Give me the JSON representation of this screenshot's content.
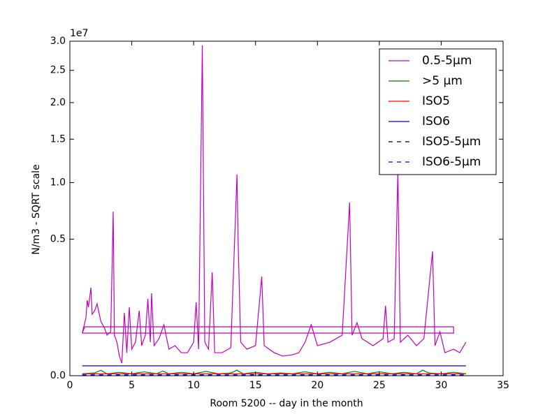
{
  "chart_data": {
    "type": "line",
    "xlabel": "Room 5200 -- day in the month",
    "ylabel": "N/m3 - SQRT scale",
    "y_offset_label": "1e7",
    "yscale": "sqrt",
    "xlim": [
      0,
      35
    ],
    "xticks": [
      0,
      5,
      10,
      15,
      20,
      25,
      30,
      35
    ],
    "ylim": [
      0,
      3
    ],
    "yticks": [
      {
        "value": 0,
        "label": "0.0"
      },
      0.5,
      {
        "value": 1,
        "label": "1.0"
      },
      1.5,
      {
        "value": 2,
        "label": "2.0"
      },
      2.5,
      {
        "value": 3,
        "label": "3.0"
      }
    ],
    "legend": "upper right",
    "series": [
      {
        "name": "0.5-5µm",
        "color": "#bf00bf",
        "linestyle": "solid",
        "x": [
          1.0,
          31.0,
          31.0,
          1.2,
          1.0,
          1.3,
          1.4,
          1.5,
          1.7,
          1.8,
          2.0,
          2.2,
          2.5,
          2.8,
          3.0,
          3.3,
          3.5,
          3.6,
          3.8,
          4.0,
          4.2,
          4.4,
          4.6,
          4.8,
          5.0,
          5.3,
          5.6,
          5.8,
          6.1,
          6.3,
          6.5,
          6.6,
          6.8,
          7.2,
          7.6,
          8.0,
          8.5,
          9.0,
          9.5,
          10.0,
          10.2,
          10.4,
          10.7,
          10.9,
          11.2,
          11.5,
          11.7,
          12.3,
          13.0,
          13.4,
          13.5,
          13.6,
          13.8,
          14.3,
          15.0,
          15.5,
          15.7,
          16.5,
          17.2,
          18.0,
          18.5,
          19.0,
          19.5,
          20.0,
          21.0,
          22.0,
          22.6,
          22.8,
          23.2,
          23.6,
          24.5,
          25.3,
          25.5,
          25.7,
          26.2,
          26.5,
          26.7,
          27.3,
          28.0,
          28.6,
          29.3,
          29.5,
          29.9,
          30.3,
          31.0,
          31.5,
          32.0
        ],
        "values": [
          0.0487,
          0.0487,
          0.0641,
          0.0641,
          0.0487,
          0.0901,
          0.1525,
          0.1256,
          0.2076,
          0.1013,
          0.1131,
          0.1387,
          0.0795,
          0.0605,
          0.044,
          0.0519,
          0.7221,
          0.044,
          0.0301,
          0.0103,
          0.0042,
          0.1059,
          0.0142,
          0.1256,
          0.0189,
          0.0301,
          0.1131,
          0.0242,
          0.044,
          0.1582,
          0.0301,
          0.1821,
          0.0242,
          0.0367,
          0.0697,
          0.0189,
          0.0242,
          0.0142,
          0.0142,
          0.0301,
          0.1442,
          0.0189,
          2.9253,
          0.0301,
          0.0189,
          0.2864,
          0.0142,
          0.0142,
          0.0209,
          0.7406,
          1.0845,
          0.4621,
          0.0301,
          0.0189,
          0.0242,
          0.2636,
          0.0242,
          0.0142,
          0.0103,
          0.0118,
          0.0142,
          0.0301,
          0.0697,
          0.0242,
          0.0301,
          0.044,
          0.8042,
          0.044,
          0.0755,
          0.0367,
          0.0242,
          0.0367,
          0.1308,
          0.0301,
          0.0367,
          1.1225,
          0.0301,
          0.044,
          0.0242,
          0.0367,
          0.4143,
          0.0242,
          0.0519,
          0.0142,
          0.0189,
          0.0142,
          0.0301
        ]
      },
      {
        "name": ">5 µm",
        "color": "#008000",
        "linestyle": "solid",
        "x": [
          1,
          2,
          2.5,
          3,
          4,
          5,
          6,
          7,
          7.5,
          8,
          9,
          10,
          11,
          12,
          13,
          13.5,
          14,
          15,
          16,
          17,
          18,
          19,
          20,
          21,
          22,
          23,
          24,
          25,
          26,
          27,
          28,
          28.5,
          29,
          30,
          31,
          32
        ],
        "values": [
          0.0001,
          0.0002,
          0.0008,
          0.0001,
          0.0003,
          0.0001,
          0.0004,
          0.0001,
          0.0006,
          0.0001,
          0.0003,
          0.0001,
          0.0005,
          0.0001,
          0.0002,
          0.0008,
          0.0001,
          0.0003,
          0.0001,
          0.0002,
          0.0001,
          0.0004,
          0.0001,
          0.0003,
          0.0001,
          0.0005,
          0.0001,
          0.0004,
          0.0001,
          0.0003,
          0.0001,
          0.0008,
          0.0002,
          0.0001,
          0.0003,
          0.0001
        ]
      },
      {
        "name": "ISO5",
        "color": "#ff0000",
        "linestyle": "solid",
        "x": [
          1,
          32
        ],
        "values": [
          0.0001,
          0.0001
        ]
      },
      {
        "name": "ISO6",
        "color": "#0000ff",
        "linestyle": "solid",
        "x": [
          1,
          32
        ],
        "values": [
          0.0026,
          0.0026
        ]
      },
      {
        "name": "ISO5-5µm",
        "color": "#000000",
        "linestyle": "dashed",
        "x": [
          1,
          32
        ],
        "values": [
          1e-06,
          1e-06
        ]
      },
      {
        "name": "ISO6-5µm",
        "color": "#0000ff",
        "linestyle": "dashed",
        "x": [
          1,
          32
        ],
        "values": [
          2e-05,
          2e-05
        ]
      }
    ]
  }
}
